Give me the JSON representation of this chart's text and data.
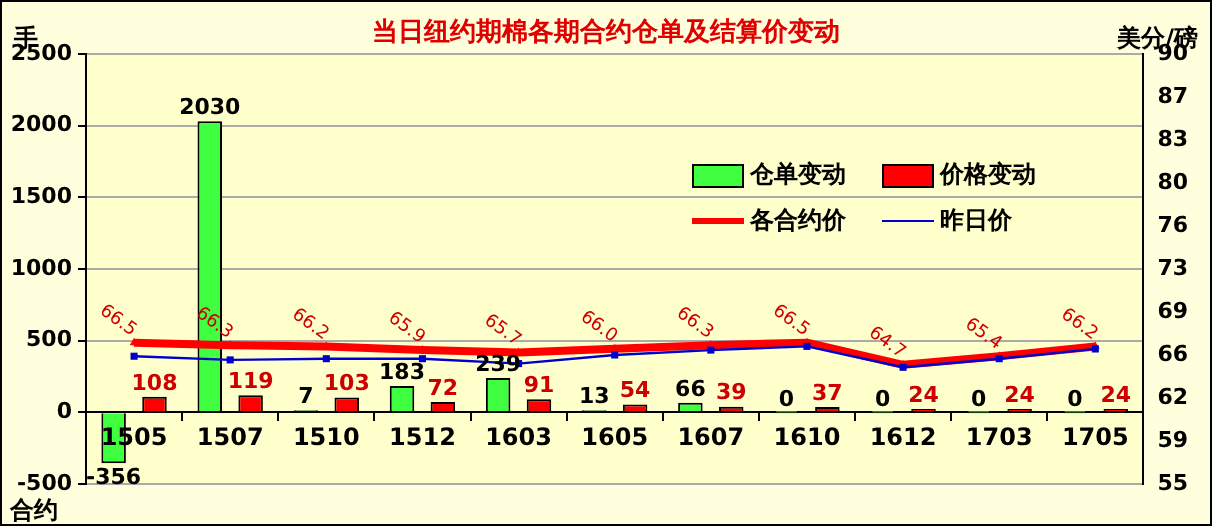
{
  "chart_data": {
    "type": "bar",
    "title": "当日纽约期棉各期合约仓单及结算价变动",
    "ylabel": "手",
    "y2label": "美分/磅",
    "xlabel": "合约",
    "categories": [
      "1505",
      "1507",
      "1510",
      "1512",
      "1603",
      "1605",
      "1607",
      "1610",
      "1612",
      "1703",
      "1705"
    ],
    "series": [
      {
        "name": "仓单变动",
        "color": "#40ff40",
        "values": [
          -356,
          2030,
          7,
          183,
          239,
          13,
          66,
          0,
          0,
          0,
          0
        ],
        "value_labels": [
          "-356",
          "2030",
          "7",
          "183",
          "239",
          "13",
          "66",
          "0",
          "0",
          "0",
          "0"
        ]
      },
      {
        "name": "价格变动",
        "color": "#ff0000",
        "values": [
          108,
          119,
          103,
          72,
          91,
          54,
          39,
          37,
          24,
          24,
          24
        ],
        "value_labels": [
          "108",
          "119",
          "103",
          "72",
          "91",
          "54",
          "39",
          "37",
          "24",
          "24",
          "24"
        ]
      },
      {
        "name": "各合约价",
        "type": "line",
        "axis": "y2",
        "color": "#ff0000",
        "marker": "triangle",
        "values": [
          66.5,
          66.3,
          66.2,
          65.9,
          65.7,
          66.0,
          66.3,
          66.5,
          64.7,
          65.4,
          66.2
        ],
        "value_labels": [
          "66.5",
          "66.3",
          "66.2",
          "65.9",
          "65.7",
          "66.0",
          "66.3",
          "66.5",
          "64.7",
          "65.4",
          "66.2"
        ]
      },
      {
        "name": "昨日价",
        "type": "line",
        "axis": "y2",
        "color": "#0000cc",
        "marker": "square",
        "values": [
          65.4,
          65.1,
          65.2,
          65.2,
          64.8,
          65.5,
          65.9,
          66.2,
          64.5,
          65.2,
          66.0
        ]
      }
    ],
    "ylim": [
      -500,
      2500
    ],
    "yticks": [
      -500,
      0,
      500,
      1000,
      1500,
      2000,
      2500
    ],
    "y2lim": [
      55,
      90
    ],
    "y2ticks": [
      55,
      {
        "value": 58.5,
        "label": "59"
      },
      62,
      {
        "value": 65.5,
        "label": "66"
      },
      69,
      {
        "value": 72.5,
        "label": "73"
      },
      76,
      {
        "value": 79.5,
        "label": "80"
      },
      83,
      {
        "value": 86.5,
        "label": "87"
      },
      90
    ],
    "grid": "y",
    "legend": "right"
  }
}
